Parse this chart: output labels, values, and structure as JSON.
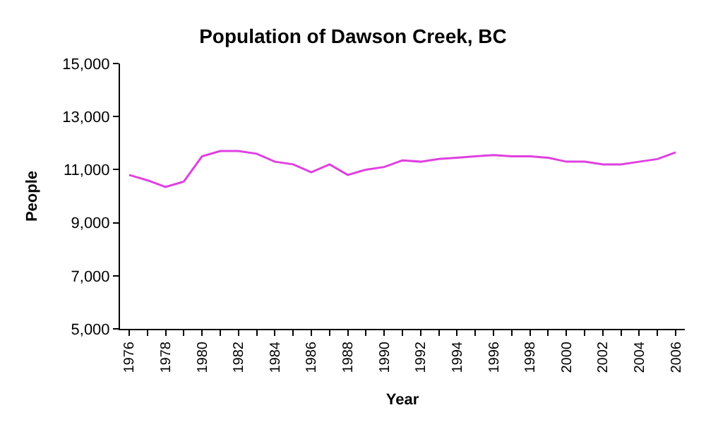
{
  "chart_data": {
    "type": "line",
    "title": "Population of Dawson Creek, BC",
    "xlabel": "Year",
    "ylabel": "People",
    "categories": [
      "1976",
      null,
      "1978",
      null,
      "1980",
      null,
      "1982",
      null,
      "1984",
      null,
      "1986",
      null,
      "1988",
      null,
      "1990",
      null,
      "1992",
      null,
      "1994",
      null,
      "1996",
      null,
      "1998",
      null,
      "2000",
      null,
      "2002",
      null,
      "2004",
      null,
      "2006"
    ],
    "series": [
      {
        "color": "#e040e0",
        "values": [
          10800,
          10600,
          10350,
          10550,
          11500,
          11700,
          11700,
          11600,
          11300,
          11200,
          10900,
          11200,
          10800,
          11000,
          11100,
          11350,
          11300,
          11400,
          11450,
          11500,
          11550,
          11500,
          11500,
          11450,
          11300,
          11300,
          11200,
          11200,
          11300,
          11400,
          11650
        ]
      }
    ],
    "ylim": [
      5000,
      15000
    ],
    "yticks": [
      {
        "value": 5000,
        "label": "5,000"
      },
      {
        "value": 7000,
        "label": "7,000"
      },
      {
        "value": 9000,
        "label": "9,000"
      },
      {
        "value": 11000,
        "label": "11,000"
      },
      {
        "value": 13000,
        "label": "13,000"
      },
      {
        "value": 15000,
        "label": "15,000"
      }
    ],
    "legend": false,
    "marker": "none",
    "line_style": "solid"
  }
}
